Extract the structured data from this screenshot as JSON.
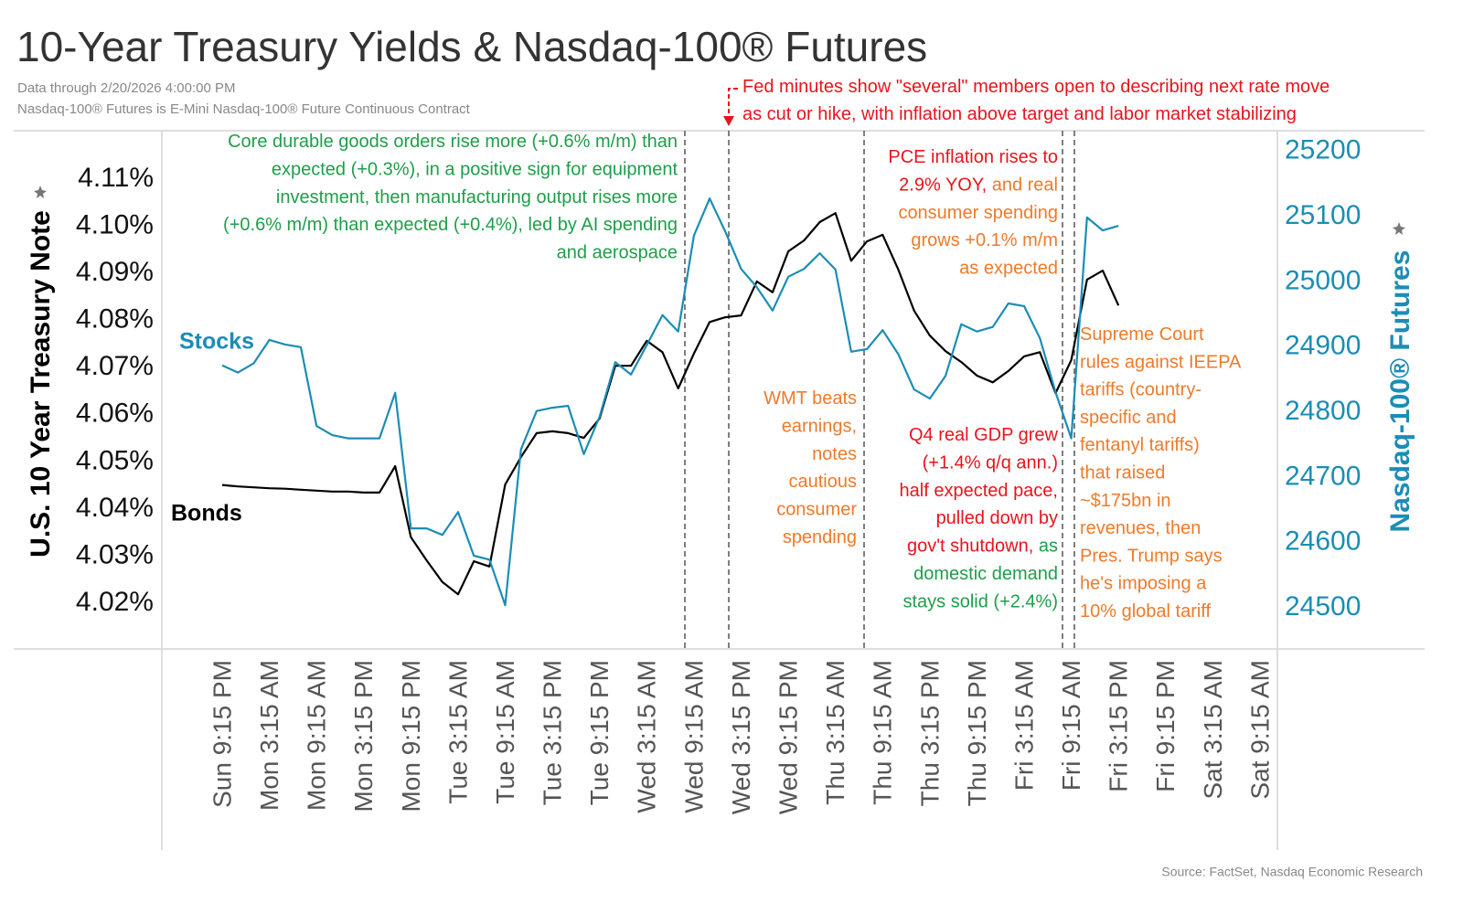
{
  "chart_data": {
    "type": "line",
    "title": "10-Year Treasury Yields & Nasdaq-100® Futures",
    "subtitle": "Data through 2/20/2026 4:00:00 PM",
    "note": "Nasdaq-100® Futures is E-Mini Nasdaq-100® Future Continuous Contract",
    "source": "Source: FactSet, Nasdaq Economic Research",
    "ylabel": "U.S. 10 Year Treasury Note",
    "y2label": "Nasdaq-100® Futures",
    "y2color": "#1b8db5",
    "grid": false,
    "categories": [
      "Sun 9:15 PM",
      null,
      null,
      "Mon 3:15 AM",
      null,
      null,
      "Mon 9:15 AM",
      null,
      null,
      "Mon 3:15 PM",
      null,
      null,
      "Mon 9:15 PM",
      null,
      null,
      "Tue 3:15 AM",
      null,
      null,
      "Tue 9:15 AM",
      null,
      null,
      "Tue 3:15 PM",
      null,
      null,
      "Tue 9:15 PM",
      null,
      null,
      "Wed 3:15 AM",
      null,
      null,
      "Wed 9:15 AM",
      null,
      null,
      "Wed 3:15 PM",
      null,
      null,
      "Wed 9:15 PM",
      null,
      null,
      "Thu 3:15 AM",
      null,
      null,
      "Thu 9:15 AM",
      null,
      null,
      "Thu 3:15 PM",
      null,
      null,
      "Thu 9:15 PM",
      null,
      null,
      "Fri 3:15 AM",
      null,
      null,
      "Fri 9:15 AM",
      null,
      null,
      "Fri 3:15 PM",
      null,
      null,
      "Fri 9:15 PM",
      null,
      null,
      "Sat 3:15 AM",
      null,
      null,
      "Sat 9:15 AM"
    ],
    "ylim": [
      4.0103,
      4.1203
    ],
    "yticks": [
      {
        "value": 4.02,
        "label": "4.02%"
      },
      {
        "value": 4.03,
        "label": "4.03%"
      },
      {
        "value": 4.04,
        "label": "4.04%"
      },
      {
        "value": 4.05,
        "label": "4.05%"
      },
      {
        "value": 4.06,
        "label": "4.06%"
      },
      {
        "value": 4.07,
        "label": "4.07%"
      },
      {
        "value": 4.08,
        "label": "4.08%"
      },
      {
        "value": 4.09,
        "label": "4.09%"
      },
      {
        "value": 4.1,
        "label": "4.10%"
      },
      {
        "value": 4.11,
        "label": "4.11%"
      }
    ],
    "y2lim": [
      24437,
      25232
    ],
    "y2ticks": [
      24500,
      24600,
      24700,
      24800,
      24900,
      25000,
      25100,
      25200
    ],
    "series": [
      {
        "name": "Bonds",
        "color": "#000000",
        "axis": "y",
        "values": [
          4.0451,
          4.0448,
          4.0446,
          4.0444,
          4.0443,
          4.0441,
          4.0439,
          4.0437,
          4.0437,
          4.0435,
          4.0435,
          4.0491,
          4.034,
          4.0291,
          4.0245,
          4.0219,
          4.0289,
          4.0278,
          4.0452,
          4.051,
          4.0561,
          4.0565,
          4.0561,
          4.0551,
          4.0592,
          4.0704,
          4.0704,
          4.0757,
          4.0733,
          4.0656,
          4.073,
          4.0797,
          4.0807,
          4.0811,
          4.0883,
          4.086,
          4.0947,
          4.097,
          4.1009,
          4.1028,
          4.0927,
          4.0968,
          4.0982,
          4.0908,
          4.0821,
          4.0768,
          4.0735,
          4.0712,
          4.0683,
          4.0669,
          4.0693,
          4.0724,
          4.0733,
          4.0646,
          4.0716,
          4.0887,
          4.0906,
          4.0832,
          null,
          null,
          null,
          null,
          null,
          null,
          null,
          null,
          null
        ]
      },
      {
        "name": "Stocks",
        "color": "#1b8db5",
        "axis": "y2",
        "values": [
          24872,
          24861,
          24875,
          24911,
          24904,
          24900,
          24779,
          24765,
          24760,
          24760,
          24760,
          24830,
          24622,
          24622,
          24612,
          24647,
          24580,
          24574,
          24504,
          24743,
          24802,
          24807,
          24810,
          24736,
          24793,
          24877,
          24858,
          24903,
          24949,
          24924,
          25071,
          25128,
          25077,
          25020,
          24992,
          24956,
          25008,
          25020,
          25044,
          25019,
          24893,
          24897,
          24926,
          24889,
          24835,
          24821,
          24856,
          24935,
          24924,
          24931,
          24967,
          24963,
          24914,
          24831,
          24760,
          25099,
          25079,
          25086,
          null,
          null,
          null,
          null,
          null,
          null,
          null,
          null,
          null
        ]
      }
    ],
    "annotations": [
      {
        "lines": [
          [
            {
              "text": "Core durable goods orders rise more (+0.6% m/m) than",
              "color": "#1e9e4a"
            }
          ],
          [
            {
              "text": "expected (+0.3%), in a positive sign for equipment",
              "color": "#1e9e4a"
            }
          ],
          [
            {
              "text": "investment, then manufacturing output rises more",
              "color": "#1e9e4a"
            }
          ],
          [
            {
              "text": "(+0.6% m/m) than expected (+0.4%), led by AI spending",
              "color": "#1e9e4a"
            }
          ],
          [
            {
              "text": "and aerospace",
              "color": "#1e9e4a"
            }
          ]
        ]
      },
      {
        "lines": [
          [
            {
              "text": "Fed minutes show \"several\" members open to describing next rate move",
              "color": "#e8141c"
            }
          ],
          [
            {
              "text": "as cut or hike, with inflation above target and labor market stabilizing",
              "color": "#e8141c"
            }
          ]
        ]
      },
      {
        "lines": [
          [
            {
              "text": "PCE inflation rises to",
              "color": "#e8141c"
            }
          ],
          [
            {
              "text": "2.9% YOY,",
              "color": "#e8141c"
            },
            {
              "text": " and real",
              "color": "#ee7a2a"
            }
          ],
          [
            {
              "text": "consumer spending",
              "color": "#ee7a2a"
            }
          ],
          [
            {
              "text": "grows +0.1% m/m",
              "color": "#ee7a2a"
            }
          ],
          [
            {
              "text": "as expected",
              "color": "#ee7a2a"
            }
          ]
        ]
      },
      {
        "lines": [
          [
            {
              "text": "WMT beats",
              "color": "#ee7a2a"
            }
          ],
          [
            {
              "text": "earnings,",
              "color": "#ee7a2a"
            }
          ],
          [
            {
              "text": "notes",
              "color": "#ee7a2a"
            }
          ],
          [
            {
              "text": "cautious",
              "color": "#ee7a2a"
            }
          ],
          [
            {
              "text": "consumer",
              "color": "#ee7a2a"
            }
          ],
          [
            {
              "text": "spending",
              "color": "#ee7a2a"
            }
          ]
        ]
      },
      {
        "lines": [
          [
            {
              "text": "Q4 real GDP grew",
              "color": "#e8141c"
            }
          ],
          [
            {
              "text": "(+1.4% q/q ann.)",
              "color": "#e8141c"
            }
          ],
          [
            {
              "text": "half expected pace,",
              "color": "#e8141c"
            }
          ],
          [
            {
              "text": "pulled down by",
              "color": "#e8141c"
            }
          ],
          [
            {
              "text": "gov't shutdown,",
              "color": "#e8141c"
            },
            {
              "text": " as",
              "color": "#1e9e4a"
            }
          ],
          [
            {
              "text": "domestic demand",
              "color": "#1e9e4a"
            }
          ],
          [
            {
              "text": "stays solid (+2.4%)",
              "color": "#1e9e4a"
            }
          ]
        ]
      },
      {
        "lines": [
          [
            {
              "text": "Supreme Court",
              "color": "#ee7a2a"
            }
          ],
          [
            {
              "text": "rules against IEEPA",
              "color": "#ee7a2a"
            }
          ],
          [
            {
              "text": "tariffs (country-",
              "color": "#ee7a2a"
            }
          ],
          [
            {
              "text": "specific and",
              "color": "#ee7a2a"
            }
          ],
          [
            {
              "text": "fentanyl tariffs)",
              "color": "#ee7a2a"
            }
          ],
          [
            {
              "text": "that raised",
              "color": "#ee7a2a"
            }
          ],
          [
            {
              "text": "~$175bn in",
              "color": "#ee7a2a"
            }
          ],
          [
            {
              "text": "revenues, then",
              "color": "#ee7a2a"
            }
          ],
          [
            {
              "text": "Pres. Trump says",
              "color": "#ee7a2a"
            }
          ],
          [
            {
              "text": "he's imposing a",
              "color": "#ee7a2a"
            }
          ],
          [
            {
              "text": "10% global tariff",
              "color": "#ee7a2a"
            }
          ]
        ]
      }
    ]
  }
}
